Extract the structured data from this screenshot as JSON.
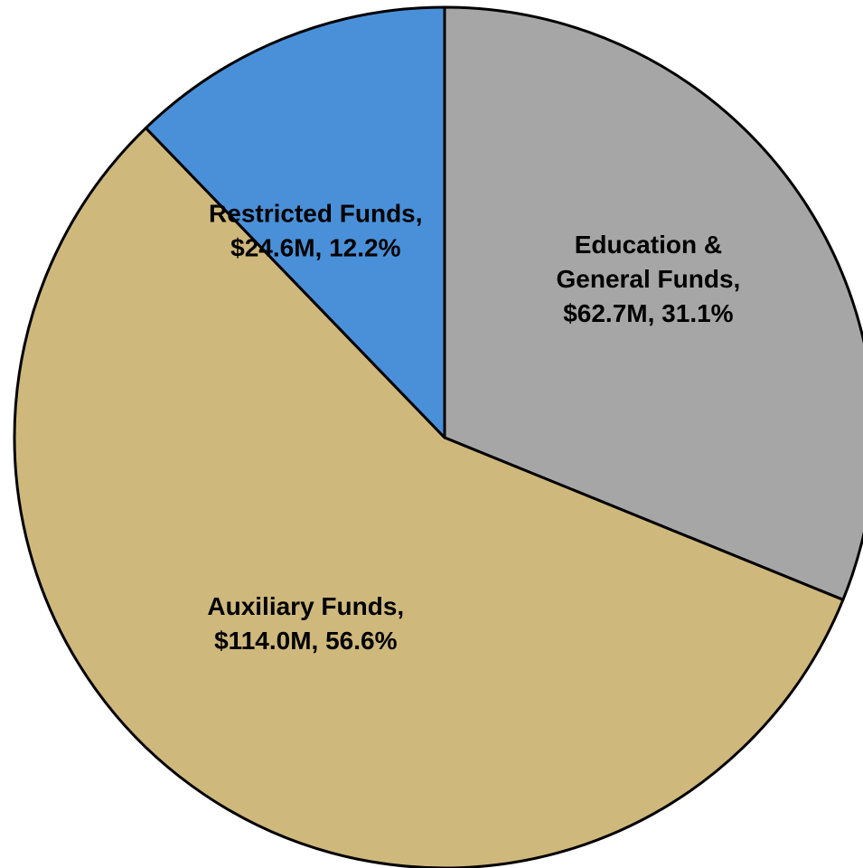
{
  "chart_data": {
    "type": "pie",
    "start_angle": "12 o'clock",
    "direction": "clockwise",
    "slices": [
      {
        "name": "Education & General Funds",
        "value": 62.7,
        "percent": 31.1,
        "color": "#a5a6a5",
        "label_lines": [
          "Education &",
          "General Funds,",
          "$62.7M, 31.1%"
        ]
      },
      {
        "name": "Auxiliary Funds",
        "value": 114.0,
        "percent": 56.6,
        "color": "#cfb87c",
        "label_lines": [
          "Auxiliary Funds,",
          "$114.0M, 56.6%"
        ]
      },
      {
        "name": "Restricted Funds",
        "value": 24.6,
        "percent": 12.2,
        "color": "#4a90d9",
        "label_lines": [
          "Restricted Funds,",
          "$24.6M, 12.2%"
        ]
      }
    ]
  }
}
